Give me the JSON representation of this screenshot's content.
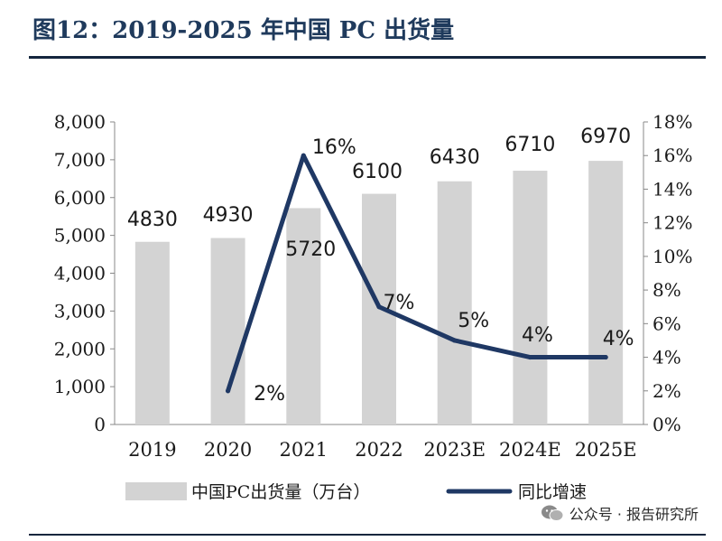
{
  "title": "图12：2019-2025 年中国 PC 出货量",
  "watermark": "公众号 · 报告研究所",
  "colors": {
    "bar": "#d3d3d3",
    "line": "#1f3864",
    "title": "#1f3a5c",
    "rule": "#14263e"
  },
  "chart_data": {
    "type": "bar",
    "categories": [
      "2019",
      "2020",
      "2021",
      "2022",
      "2023E",
      "2024E",
      "2025E"
    ],
    "series": [
      {
        "name": "中国PC出货量（万台）",
        "type": "bar",
        "axis": "left",
        "values": [
          4830,
          4930,
          5720,
          6100,
          6430,
          6710,
          6970
        ],
        "labels": [
          "4830",
          "4930",
          "5720",
          "6100",
          "6430",
          "6710",
          "6970"
        ]
      },
      {
        "name": "同比增速",
        "type": "line",
        "axis": "right",
        "values": [
          null,
          2,
          16,
          7,
          5,
          4,
          4
        ],
        "labels": [
          "",
          "2%",
          "16%",
          "7%",
          "5%",
          "4%",
          "4%"
        ]
      }
    ],
    "y_left": {
      "min": 0,
      "max": 8000,
      "ticks": [
        "0",
        "1,000",
        "2,000",
        "3,000",
        "4,000",
        "5,000",
        "6,000",
        "7,000",
        "8,000"
      ]
    },
    "y_right": {
      "min": 0,
      "max": 18,
      "ticks": [
        "0%",
        "2%",
        "4%",
        "6%",
        "8%",
        "10%",
        "12%",
        "14%",
        "16%",
        "18%"
      ]
    },
    "legend": [
      "中国PC出货量（万台）",
      "同比增速"
    ],
    "legend_position": "bottom"
  }
}
